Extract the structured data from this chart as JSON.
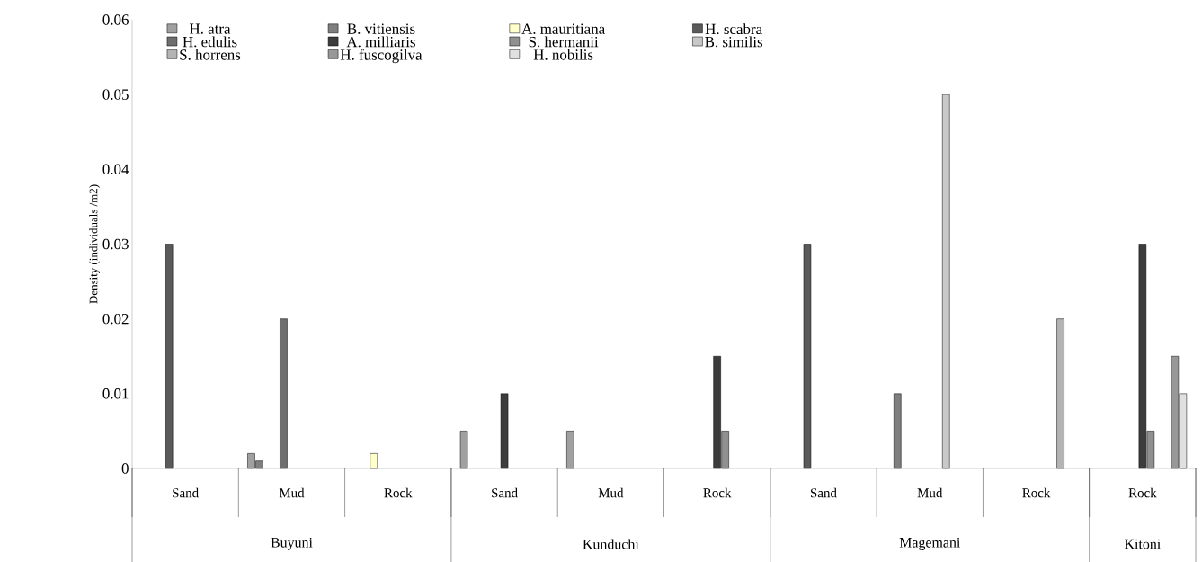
{
  "chart_data": {
    "type": "bar",
    "ylabel": "Density (individuals /m2)",
    "categories": [
      "Sand",
      "Mud",
      "Rock",
      "Sand",
      "Mud",
      "Rock",
      "Sand",
      "Mud",
      "Rock",
      "Rock"
    ],
    "annotations": [
      "Buyuni",
      "Kunduchi",
      "Magemani",
      "Kitoni"
    ],
    "ylim": [
      0,
      0.06
    ],
    "yticks": [
      0,
      0.01,
      0.02,
      0.03,
      0.04,
      0.05,
      0.06
    ],
    "legend": "top",
    "grid": false,
    "series": [
      {
        "name": "H. atra",
        "color": "#a0a0a0",
        "values": [
          null,
          0.002,
          null,
          0.005,
          0.005,
          null,
          null,
          null,
          null,
          null
        ]
      },
      {
        "name": "B. vitiensis",
        "color": "#7f7f7f",
        "values": [
          null,
          0.001,
          null,
          null,
          null,
          null,
          null,
          0.01,
          null,
          null
        ]
      },
      {
        "name": "A. mauritiana",
        "color": "#ffffcc",
        "values": [
          null,
          null,
          0.002,
          null,
          null,
          null,
          null,
          null,
          null,
          null
        ]
      },
      {
        "name": "H. scabra",
        "color": "#5a5a5a",
        "values": [
          0.03,
          null,
          null,
          null,
          null,
          null,
          0.03,
          null,
          null,
          null
        ]
      },
      {
        "name": "H. edulis",
        "color": "#6e6e6e",
        "values": [
          null,
          0.02,
          null,
          null,
          null,
          null,
          null,
          null,
          null,
          null
        ]
      },
      {
        "name": "A. milliaris",
        "color": "#3c3c3c",
        "values": [
          null,
          null,
          null,
          0.01,
          null,
          0.015,
          null,
          null,
          null,
          0.03
        ]
      },
      {
        "name": "S. hermanii",
        "color": "#909090",
        "values": [
          null,
          null,
          null,
          null,
          null,
          0.005,
          null,
          null,
          null,
          0.005
        ]
      },
      {
        "name": "B. similis",
        "color": "#c8c8c8",
        "values": [
          null,
          null,
          null,
          null,
          null,
          null,
          null,
          0.05,
          null,
          null
        ]
      },
      {
        "name": "S. horrens",
        "color": "#b4b4b4",
        "values": [
          null,
          null,
          null,
          null,
          null,
          null,
          null,
          null,
          0.02,
          null
        ]
      },
      {
        "name": "H. fuscogilva",
        "color": "#989898",
        "values": [
          null,
          null,
          null,
          null,
          null,
          null,
          null,
          null,
          null,
          0.015
        ]
      },
      {
        "name": "H. nobilis",
        "color": "#e0e0e0",
        "values": [
          null,
          null,
          null,
          null,
          null,
          null,
          null,
          null,
          null,
          0.01
        ]
      }
    ]
  }
}
